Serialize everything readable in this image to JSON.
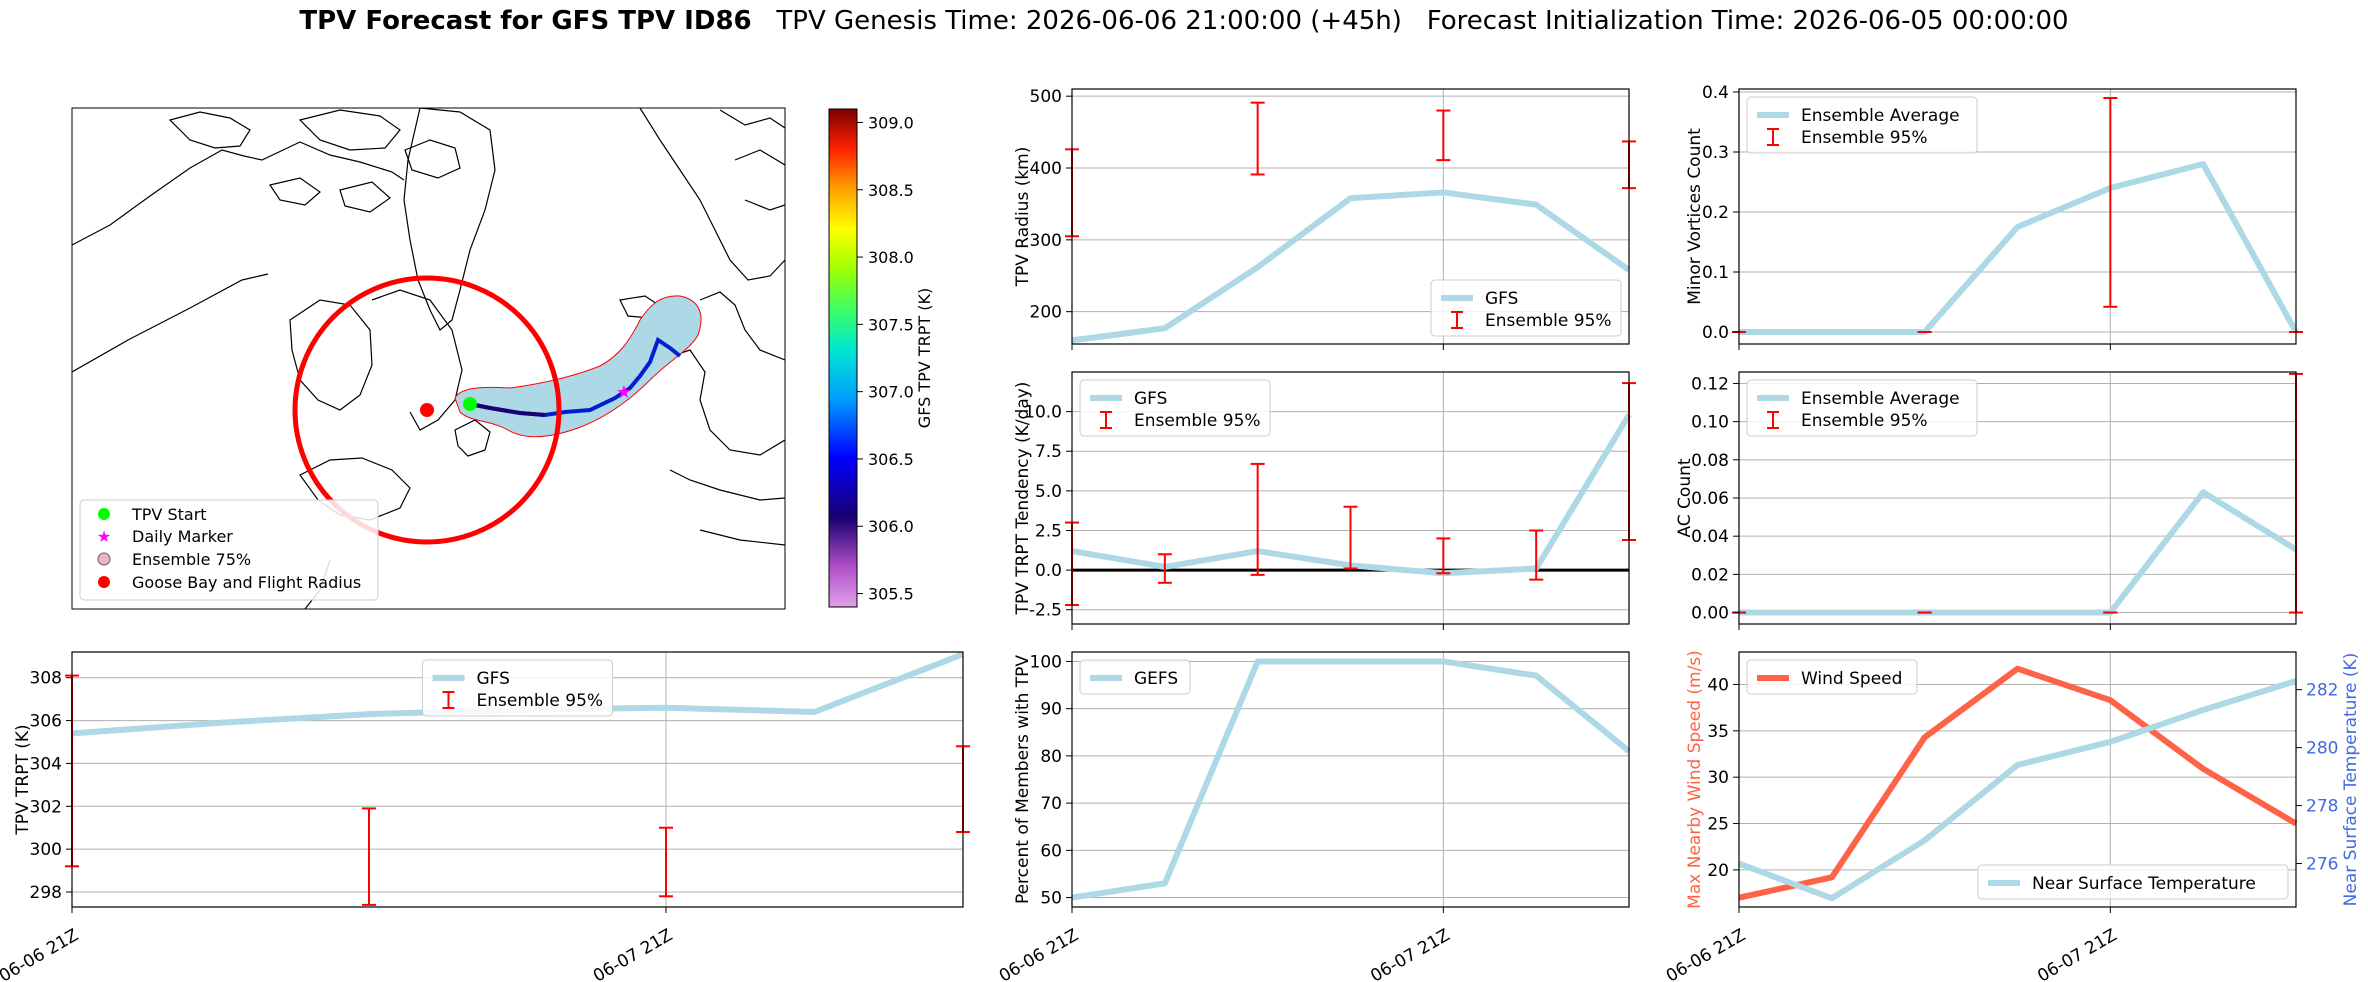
{
  "header": {
    "title_bold": "TPV Forecast for GFS TPV ID86",
    "title_rest": "   TPV Genesis Time: 2026-06-06 21:00:00 (+45h)   Forecast Initialization Time: 2026-06-05 00:00:00"
  },
  "colors": {
    "gfs_line": "#add8e6",
    "error_bar": "#ff0000",
    "wind": "#ff6347",
    "temp_axis": "#4169e1",
    "plume": "#add8e6",
    "radius_circle": "#ff0000",
    "tpv_start": "#00ff00",
    "daily_marker": "#ff00ff"
  },
  "map": {
    "type": "map",
    "colorbar": {
      "label": "GFS TPV TRPT (K)",
      "min": 305.4,
      "max": 309.1,
      "ticks": [
        "309.0",
        "308.5",
        "308.0",
        "307.5",
        "307.0",
        "306.5",
        "306.0",
        "305.5"
      ],
      "tick_values": [
        309.0,
        308.5,
        308.0,
        307.5,
        307.0,
        306.5,
        306.0,
        305.5
      ],
      "colormap": "gist_ncar-like"
    },
    "legend": [
      {
        "label": "TPV Start",
        "marker": "circle",
        "color": "#00ff00"
      },
      {
        "label": "Daily Marker",
        "marker": "star",
        "color": "#ff00ff"
      },
      {
        "label": "Ensemble 75%",
        "marker": "circle",
        "color": "#c8a8b8"
      },
      {
        "label": "Goose Bay and Flight Radius",
        "marker": "circle",
        "color": "#ff0000"
      }
    ]
  },
  "chart_data": [
    {
      "id": "trpt",
      "type": "line",
      "x": [
        0,
        6,
        12,
        18,
        24,
        30,
        36
      ],
      "ylabel": "TPV TRPT (K)",
      "ylim": [
        297.3,
        309.2
      ],
      "yticks": [
        298,
        300,
        302,
        304,
        306,
        308
      ],
      "xticks": [
        {
          "x": 0,
          "label": "06-06 21Z"
        },
        {
          "x": 24,
          "label": "06-07 21Z"
        }
      ],
      "series": [
        {
          "name": "GFS",
          "values": [
            305.4,
            305.9,
            306.3,
            306.5,
            306.6,
            306.4,
            309.1
          ]
        }
      ],
      "errorbars": {
        "name": "Ensemble 95%",
        "x": [
          0,
          12,
          24,
          36
        ],
        "low": [
          299.2,
          297.4,
          297.8,
          300.8
        ],
        "high": [
          308.1,
          301.9,
          301.0,
          304.8
        ]
      },
      "legend": "upper center"
    },
    {
      "id": "radius",
      "type": "line",
      "x": [
        0,
        6,
        12,
        18,
        24,
        30,
        36
      ],
      "ylabel": "TPV Radius (km)",
      "ylim": [
        155,
        510
      ],
      "yticks": [
        200,
        300,
        400,
        500
      ],
      "xticks": [
        {
          "x": 0,
          "label": ""
        },
        {
          "x": 24,
          "label": ""
        }
      ],
      "series": [
        {
          "name": "GFS",
          "values": [
            160,
            177,
            262,
            358,
            366,
            349,
            258
          ]
        }
      ],
      "errorbars": {
        "name": "Ensemble 95%",
        "x": [
          0,
          12,
          24,
          36
        ],
        "low": [
          305,
          391,
          411,
          372
        ],
        "high": [
          426,
          491,
          480,
          437
        ]
      },
      "legend": "lower right"
    },
    {
      "id": "tendency",
      "type": "line",
      "x": [
        0,
        6,
        12,
        18,
        24,
        30,
        36
      ],
      "ylabel": "TPV TRPT Tendency (K/day)",
      "ylim": [
        -3.4,
        12.5
      ],
      "yticks": [
        -2.5,
        0.0,
        2.5,
        5.0,
        7.5,
        10.0
      ],
      "xticks": [
        {
          "x": 0,
          "label": ""
        },
        {
          "x": 24,
          "label": ""
        }
      ],
      "zero_line": true,
      "series": [
        {
          "name": "GFS",
          "values": [
            1.2,
            0.2,
            1.2,
            0.3,
            -0.2,
            0.1,
            9.8
          ]
        }
      ],
      "errorbars": {
        "name": "Ensemble 95%",
        "x": [
          0,
          6,
          12,
          18,
          24,
          30,
          36
        ],
        "low": [
          -2.2,
          -0.8,
          -0.3,
          0.1,
          -0.2,
          -0.6,
          1.9
        ],
        "high": [
          3.0,
          1.0,
          6.7,
          4.0,
          2.0,
          2.5,
          11.8
        ]
      },
      "legend": "upper left"
    },
    {
      "id": "percent",
      "type": "line",
      "x": [
        0,
        6,
        12,
        18,
        24,
        30,
        36
      ],
      "ylabel": "Percent of Members with TPV",
      "ylim": [
        48,
        102
      ],
      "yticks": [
        50,
        60,
        70,
        80,
        90,
        100
      ],
      "xticks": [
        {
          "x": 0,
          "label": "06-06 21Z"
        },
        {
          "x": 24,
          "label": "06-07 21Z"
        }
      ],
      "series": [
        {
          "name": "GEFS",
          "values": [
            50,
            53,
            100,
            100,
            100,
            97,
            81
          ]
        }
      ],
      "legend": "upper left"
    },
    {
      "id": "minor",
      "type": "line",
      "x": [
        0,
        6,
        12,
        18,
        24,
        30,
        36
      ],
      "ylabel": "Minor Vortices Count",
      "ylim": [
        -0.02,
        0.405
      ],
      "yticks": [
        0.0,
        0.1,
        0.2,
        0.3,
        0.4
      ],
      "xticks": [
        {
          "x": 0,
          "label": ""
        },
        {
          "x": 24,
          "label": ""
        }
      ],
      "series": [
        {
          "name": "Ensemble Average",
          "values": [
            0.0,
            0.0,
            0.0,
            0.175,
            0.24,
            0.28,
            0.0
          ]
        }
      ],
      "errorbars": {
        "name": "Ensemble 95%",
        "x": [
          0,
          12,
          24,
          36
        ],
        "low": [
          0.0,
          0.0,
          0.042,
          0.0
        ],
        "high": [
          0.0,
          0.0,
          0.39,
          0.0
        ]
      },
      "legend": "upper left"
    },
    {
      "id": "ac",
      "type": "line",
      "x": [
        0,
        6,
        12,
        18,
        24,
        30,
        36
      ],
      "ylabel": "AC Count",
      "ylim": [
        -0.006,
        0.126
      ],
      "yticks": [
        0.0,
        0.02,
        0.04,
        0.06,
        0.08,
        0.1,
        0.12
      ],
      "xticks": [
        {
          "x": 0,
          "label": ""
        },
        {
          "x": 24,
          "label": ""
        }
      ],
      "series": [
        {
          "name": "Ensemble Average",
          "values": [
            0.0,
            0.0,
            0.0,
            0.0,
            0.0,
            0.063,
            0.033
          ]
        }
      ],
      "errorbars": {
        "name": "Ensemble 95%",
        "x": [
          0,
          12,
          24,
          36
        ],
        "low": [
          0.0,
          0.0,
          0.0,
          0.0
        ],
        "high": [
          0.0,
          0.0,
          0.0,
          0.125
        ]
      },
      "legend": "upper left"
    },
    {
      "id": "wind",
      "type": "line",
      "x": [
        0,
        6,
        12,
        18,
        24,
        30,
        36
      ],
      "ylabel": "Max Nearby Wind Speed (m/s)",
      "ylim": [
        16,
        43.5
      ],
      "yticks": [
        20,
        25,
        30,
        35,
        40
      ],
      "y2label": "Near Surface Temperature (K)",
      "y2lim": [
        274.5,
        283.3
      ],
      "y2ticks": [
        276,
        278,
        280,
        282
      ],
      "xticks": [
        {
          "x": 0,
          "label": "06-06 21Z"
        },
        {
          "x": 24,
          "label": "06-07 21Z"
        }
      ],
      "series": [
        {
          "name": "Wind Speed",
          "axis": "left",
          "values": [
            17.0,
            19.2,
            34.3,
            41.7,
            38.3,
            30.9,
            25.0
          ]
        },
        {
          "name": "Near Surface Temperature",
          "axis": "right",
          "values": [
            276.0,
            274.8,
            276.8,
            279.4,
            280.2,
            281.3,
            282.3
          ]
        }
      ]
    }
  ]
}
